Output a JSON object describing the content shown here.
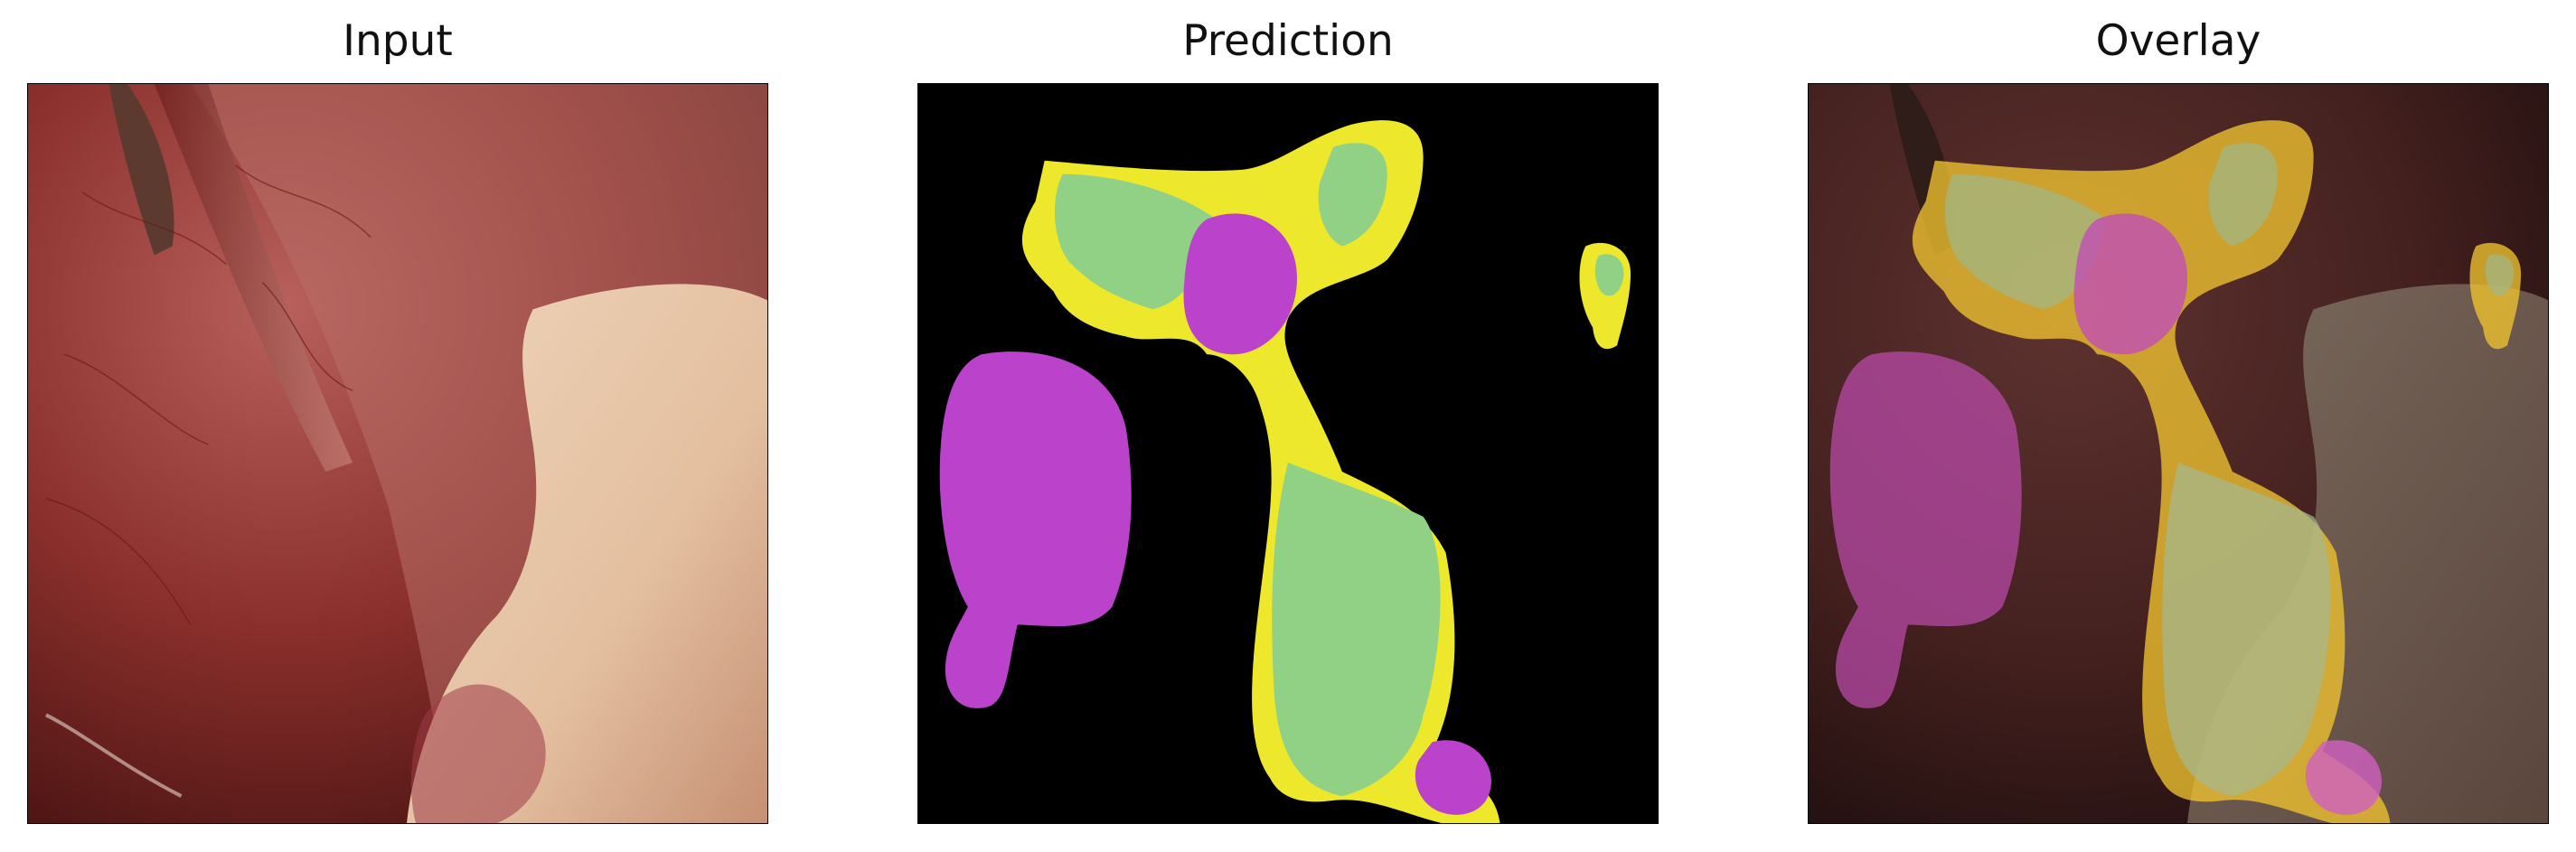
{
  "panels": [
    {
      "title": "Input"
    },
    {
      "title": "Prediction"
    },
    {
      "title": "Overlay"
    }
  ],
  "colors": {
    "background_mask": "#000000",
    "class_yellow": "#ede82c",
    "class_green": "#90d186",
    "class_magenta": "#bb43cc",
    "tissue_red": "#8a2a2a",
    "tissue_light": "#e8cbb0"
  }
}
